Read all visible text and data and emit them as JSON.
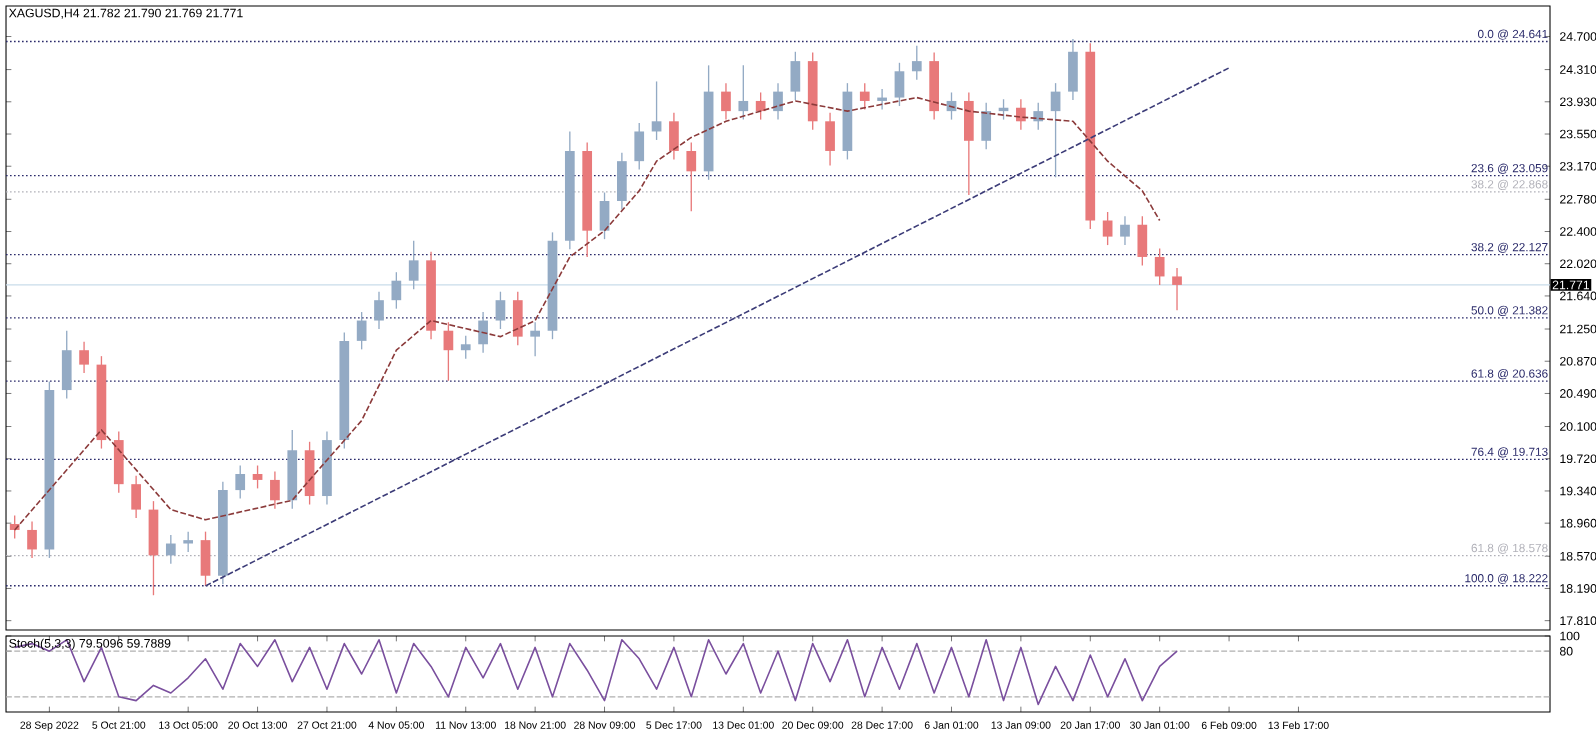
{
  "chart_data": [
    {
      "type": "candlestick",
      "title": "XAGUSD,H4  21.782 21.790 21.769 21.771",
      "categories": [
        null,
        null,
        null,
        null,
        null,
        null,
        null,
        null,
        null,
        null,
        null,
        null,
        null,
        null,
        null,
        null,
        null,
        null,
        null,
        null,
        null,
        null,
        null,
        null,
        null,
        null,
        null,
        null,
        null,
        null,
        null,
        null,
        null,
        null,
        null,
        null,
        null,
        null,
        null,
        null,
        null,
        null,
        null,
        null,
        null,
        null,
        null,
        null,
        null,
        null,
        null,
        null,
        null,
        null,
        null,
        null,
        null,
        null,
        null,
        null,
        null,
        null,
        null,
        null,
        null,
        null,
        null,
        null,
        null,
        null,
        null,
        null,
        null,
        null,
        null,
        null,
        null,
        null,
        null,
        null,
        null,
        null,
        null,
        null,
        null,
        null,
        null,
        null,
        null
      ],
      "ohlc": [
        [
          18.95,
          19.05,
          18.78,
          18.88
        ],
        [
          18.88,
          18.98,
          18.55,
          18.65
        ],
        [
          18.65,
          20.63,
          18.55,
          20.53
        ],
        [
          20.53,
          21.23,
          20.43,
          21.0
        ],
        [
          21.0,
          21.1,
          20.73,
          20.83
        ],
        [
          20.83,
          20.93,
          19.84,
          19.94
        ],
        [
          19.94,
          20.04,
          19.32,
          19.42
        ],
        [
          19.42,
          19.52,
          19.02,
          19.12
        ],
        [
          19.12,
          19.22,
          18.11,
          18.58
        ],
        [
          18.58,
          18.82,
          18.48,
          18.72
        ],
        [
          18.72,
          18.86,
          18.62,
          18.76
        ],
        [
          18.76,
          18.86,
          18.22,
          18.34
        ],
        [
          18.34,
          19.45,
          18.24,
          19.35
        ],
        [
          19.35,
          19.64,
          19.25,
          19.54
        ],
        [
          19.54,
          19.64,
          19.37,
          19.47
        ],
        [
          19.47,
          19.57,
          19.13,
          19.23
        ],
        [
          19.23,
          20.06,
          19.13,
          19.82
        ],
        [
          19.82,
          19.92,
          19.18,
          19.28
        ],
        [
          19.28,
          20.04,
          19.18,
          19.94
        ],
        [
          19.94,
          21.21,
          19.84,
          21.11
        ],
        [
          21.11,
          21.45,
          21.01,
          21.35
        ],
        [
          21.35,
          21.69,
          21.25,
          21.59
        ],
        [
          21.59,
          21.92,
          21.49,
          21.82
        ],
        [
          21.82,
          22.29,
          21.72,
          22.06
        ],
        [
          22.06,
          22.16,
          21.13,
          21.23
        ],
        [
          21.23,
          21.33,
          20.64,
          21.0
        ],
        [
          21.0,
          21.17,
          20.9,
          21.07
        ],
        [
          21.07,
          21.45,
          20.97,
          21.35
        ],
        [
          21.35,
          21.69,
          21.25,
          21.59
        ],
        [
          21.59,
          21.69,
          21.06,
          21.16
        ],
        [
          21.16,
          21.33,
          20.93,
          21.23
        ],
        [
          21.23,
          22.39,
          21.13,
          22.29
        ],
        [
          22.29,
          23.58,
          22.19,
          23.35
        ],
        [
          23.35,
          23.45,
          22.1,
          22.41
        ],
        [
          22.41,
          22.86,
          22.31,
          22.76
        ],
        [
          22.76,
          23.33,
          22.66,
          23.23
        ],
        [
          23.23,
          23.68,
          23.13,
          23.58
        ],
        [
          23.58,
          24.17,
          23.48,
          23.7
        ],
        [
          23.7,
          23.8,
          23.25,
          23.35
        ],
        [
          23.35,
          23.45,
          22.64,
          23.11
        ],
        [
          23.11,
          24.36,
          23.01,
          24.05
        ],
        [
          24.05,
          24.15,
          23.72,
          23.82
        ],
        [
          23.82,
          24.36,
          23.72,
          23.94
        ],
        [
          23.94,
          24.04,
          23.72,
          23.82
        ],
        [
          23.82,
          24.15,
          23.72,
          24.05
        ],
        [
          24.05,
          24.52,
          23.95,
          24.41
        ],
        [
          24.41,
          24.51,
          23.6,
          23.7
        ],
        [
          23.7,
          23.8,
          23.18,
          23.35
        ],
        [
          23.35,
          24.15,
          23.25,
          24.05
        ],
        [
          24.05,
          24.15,
          23.84,
          23.94
        ],
        [
          23.94,
          24.08,
          23.84,
          23.98
        ],
        [
          23.98,
          24.39,
          23.88,
          24.29
        ],
        [
          24.29,
          24.59,
          24.19,
          24.41
        ],
        [
          24.41,
          24.51,
          23.72,
          23.82
        ],
        [
          23.82,
          24.04,
          23.72,
          23.94
        ],
        [
          23.94,
          24.04,
          22.83,
          23.47
        ],
        [
          23.47,
          23.92,
          23.37,
          23.82
        ],
        [
          23.82,
          23.96,
          23.72,
          23.86
        ],
        [
          23.86,
          23.96,
          23.6,
          23.7
        ],
        [
          23.7,
          23.92,
          23.6,
          23.82
        ],
        [
          23.82,
          24.15,
          23.04,
          24.05
        ],
        [
          24.05,
          24.67,
          23.95,
          24.52
        ],
        [
          24.52,
          24.62,
          22.43,
          22.53
        ],
        [
          22.53,
          22.63,
          22.24,
          22.34
        ],
        [
          22.34,
          22.58,
          22.24,
          22.48
        ],
        [
          22.48,
          22.58,
          22.0,
          22.1
        ],
        [
          22.1,
          22.2,
          21.77,
          21.87
        ],
        [
          21.87,
          21.97,
          21.47,
          21.77
        ],
        null,
        null,
        null,
        null,
        null,
        null,
        null,
        null,
        null,
        null,
        null,
        null,
        null,
        null,
        null,
        null,
        null,
        null,
        null,
        null,
        null
      ],
      "colors": [
        "#e8797a",
        "#e8797a",
        "#93aac4",
        "#93aac4",
        "#e8797a",
        "#e8797a",
        "#e8797a",
        "#e8797a",
        "#e8797a",
        "#93aac4",
        "#93aac4",
        "#e8797a",
        "#93aac4",
        "#93aac4",
        "#e8797a",
        "#e8797a",
        "#93aac4",
        "#e8797a",
        "#93aac4",
        "#93aac4",
        "#93aac4",
        "#93aac4",
        "#93aac4",
        "#93aac4",
        "#e8797a",
        "#e8797a",
        "#93aac4",
        "#93aac4",
        "#93aac4",
        "#e8797a",
        "#93aac4",
        "#93aac4",
        "#93aac4",
        "#e8797a",
        "#93aac4",
        "#93aac4",
        "#93aac4",
        "#93aac4",
        "#e8797a",
        "#e8797a",
        "#93aac4",
        "#e8797a",
        "#93aac4",
        "#e8797a",
        "#93aac4",
        "#93aac4",
        "#e8797a",
        "#e8797a",
        "#93aac4",
        "#e8797a",
        "#93aac4",
        "#93aac4",
        "#93aac4",
        "#e8797a",
        "#93aac4",
        "#e8797a",
        "#93aac4",
        "#93aac4",
        "#e8797a",
        "#93aac4",
        "#93aac4",
        "#93aac4",
        "#e8797a",
        "#e8797a",
        "#93aac4",
        "#e8797a",
        "#e8797a",
        "#e8797a",
        null,
        null,
        null,
        null,
        null,
        null,
        null,
        null,
        null,
        null,
        null,
        null,
        null,
        null,
        null,
        null,
        null,
        null,
        null,
        null,
        null
      ],
      "series": [
        {
          "type": "line",
          "color": "#3c3c78",
          "line_style": "dashed",
          "values": [
            null,
            null,
            null,
            null,
            null,
            null,
            null,
            null,
            null,
            null,
            null,
            18.22,
            null,
            null,
            null,
            null,
            null,
            null,
            null,
            null,
            null,
            null,
            null,
            null,
            null,
            null,
            null,
            null,
            null,
            null,
            null,
            null,
            null,
            null,
            null,
            null,
            null,
            null,
            null,
            null,
            null,
            null,
            null,
            null,
            null,
            null,
            null,
            null,
            null,
            null,
            null,
            null,
            null,
            null,
            null,
            null,
            null,
            null,
            null,
            null,
            null,
            null,
            null,
            null,
            null,
            null,
            null,
            null,
            null,
            null,
            24.33,
            null,
            null,
            null,
            null,
            null,
            null,
            null,
            null,
            null,
            null,
            null,
            null,
            null,
            null,
            null,
            null,
            null,
            null
          ]
        },
        {
          "type": "line",
          "color": "#8b3a3a",
          "line_style": "dashed",
          "values": [
            18.88,
            null,
            null,
            null,
            null,
            20.06,
            null,
            null,
            null,
            19.12,
            null,
            19.0,
            null,
            null,
            null,
            null,
            19.23,
            19.47,
            null,
            null,
            20.17,
            null,
            21.0,
            null,
            21.35,
            null,
            null,
            null,
            21.16,
            null,
            21.35,
            null,
            22.1,
            null,
            22.41,
            null,
            22.88,
            23.23,
            null,
            23.51,
            null,
            23.7,
            null,
            null,
            null,
            23.94,
            null,
            null,
            23.82,
            null,
            null,
            null,
            23.98,
            null,
            null,
            23.82,
            null,
            null,
            23.75,
            null,
            null,
            23.7,
            null,
            23.23,
            null,
            22.88,
            22.53,
            null,
            null,
            null,
            null,
            null,
            null,
            null,
            null,
            null,
            null,
            null,
            null,
            null,
            null,
            null,
            null,
            null,
            null,
            null,
            null,
            null,
            null
          ]
        }
      ],
      "ref_lines": [
        {
          "axis": "y",
          "value": 24.641,
          "label": "0.0 @ 24.641",
          "color": "#2a2a6a",
          "line_style": "dotted"
        },
        {
          "axis": "y",
          "value": 23.059,
          "label": "23.6 @ 23.059",
          "color": "#2a2a6a",
          "line_style": "dotted"
        },
        {
          "axis": "y",
          "value": 22.868,
          "label": "38.2 @ 22.868",
          "color": "#b0b0b8",
          "line_style": "dotted"
        },
        {
          "axis": "y",
          "value": 22.127,
          "label": "38.2 @ 22.127",
          "color": "#2a2a6a",
          "line_style": "dotted"
        },
        {
          "axis": "y",
          "value": 21.771,
          "label": "21.771",
          "color": "#c9dcea",
          "line_style": "solid"
        },
        {
          "axis": "y",
          "value": 21.382,
          "label": "50.0 @ 21.382",
          "color": "#2a2a6a",
          "line_style": "dotted"
        },
        {
          "axis": "y",
          "value": 20.636,
          "label": "61.8 @ 20.636",
          "color": "#2a2a6a",
          "line_style": "dotted"
        },
        {
          "axis": "y",
          "value": 19.713,
          "label": "76.4 @ 19.713",
          "color": "#2a2a6a",
          "line_style": "dotted"
        },
        {
          "axis": "y",
          "value": 18.578,
          "label": "61.8 @ 18.578",
          "color": "#b0b0b8",
          "line_style": "dotted"
        },
        {
          "axis": "y",
          "value": 18.222,
          "label": "100.0 @ 18.222",
          "color": "#2a2a6a",
          "line_style": "dotted"
        }
      ],
      "ylim": [
        17.7,
        25.06
      ],
      "yticks": [
        {
          "value": 24.7,
          "label": "24.700"
        },
        {
          "value": 24.31,
          "label": "24.310"
        },
        {
          "value": 23.93,
          "label": "23.930"
        },
        {
          "value": 23.55,
          "label": "23.550"
        },
        {
          "value": 23.17,
          "label": "23.170"
        },
        {
          "value": 22.78,
          "label": "22.780"
        },
        {
          "value": 22.4,
          "label": "22.400"
        },
        {
          "value": 22.02,
          "label": "22.020"
        },
        {
          "value": 21.64,
          "label": "21.640"
        },
        {
          "value": 21.25,
          "label": "21.250"
        },
        {
          "value": 20.87,
          "label": "20.870"
        },
        {
          "value": 20.49,
          "label": "20.490"
        },
        {
          "value": 20.1,
          "label": "20.100"
        },
        {
          "value": 19.72,
          "label": "19.720"
        },
        {
          "value": 19.34,
          "label": "19.340"
        },
        {
          "value": 18.96,
          "label": "18.960"
        },
        {
          "value": 18.57,
          "label": "18.570"
        },
        {
          "value": 18.19,
          "label": "18.190"
        },
        {
          "value": 17.81,
          "label": "17.810"
        }
      ],
      "tick_labels": "y"
    },
    {
      "type": "line",
      "title": "Stoch(5,3,3) 79.5096 59.7889",
      "categories": [
        null,
        null,
        "28 Sep 2022",
        null,
        null,
        null,
        "5 Oct 21:00",
        null,
        null,
        null,
        "13 Oct 05:00",
        null,
        null,
        null,
        "20 Oct 13:00",
        null,
        null,
        null,
        "27 Oct 21:00",
        null,
        null,
        null,
        "4 Nov 05:00",
        null,
        null,
        null,
        "11 Nov 13:00",
        null,
        null,
        null,
        "18 Nov 21:00",
        null,
        null,
        null,
        "28 Nov 09:00",
        null,
        null,
        null,
        "5 Dec 17:00",
        null,
        null,
        null,
        "13 Dec 01:00",
        null,
        null,
        null,
        "20 Dec 09:00",
        null,
        null,
        null,
        "28 Dec 17:00",
        null,
        null,
        null,
        "6 Jan 01:00",
        null,
        null,
        null,
        "13 Jan 09:00",
        null,
        null,
        null,
        "20 Jan 17:00",
        null,
        null,
        null,
        "30 Jan 01:00",
        null,
        null,
        null,
        "6 Feb 09:00",
        null,
        null,
        null,
        "13 Feb 17:00",
        null,
        null,
        null,
        null,
        null,
        null,
        null,
        null,
        null,
        null,
        null,
        null,
        null,
        null
      ],
      "series": [
        {
          "color": "#7a4f9e",
          "values": [
            85,
            90,
            80,
            95,
            40,
            85,
            20,
            15,
            35,
            25,
            45,
            70,
            30,
            90,
            60,
            95,
            40,
            85,
            30,
            90,
            50,
            95,
            25,
            90,
            60,
            20,
            85,
            45,
            90,
            30,
            85,
            20,
            90,
            55,
            15,
            95,
            70,
            30,
            85,
            20,
            95,
            50,
            90,
            25,
            80,
            15,
            90,
            40,
            95,
            20,
            85,
            30,
            90,
            25,
            85,
            20,
            95,
            15,
            85,
            10,
            60,
            15,
            75,
            20,
            70,
            15,
            60,
            80,
            null,
            null,
            null,
            null,
            null,
            null,
            null,
            null,
            null,
            null,
            null,
            null,
            null,
            null,
            null,
            null,
            null,
            null,
            null,
            null,
            null
          ]
        }
      ],
      "ref_lines": [
        {
          "axis": "y",
          "value": 80,
          "color": "#b0b0b0",
          "line_style": "dashed"
        },
        {
          "axis": "y",
          "value": 20,
          "color": "#b0b0b0",
          "line_style": "dashed"
        }
      ],
      "ylim": [
        0,
        100
      ],
      "yticks": [
        100,
        80
      ]
    }
  ]
}
